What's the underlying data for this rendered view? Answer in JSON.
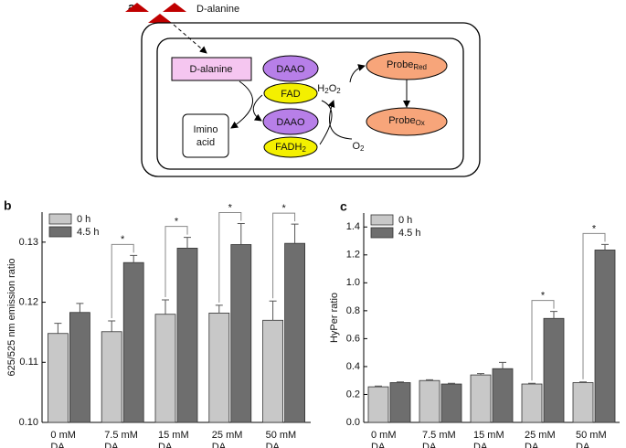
{
  "diagram": {
    "label": "a",
    "input": "D-alanine",
    "cell_substrate": "D-alanine",
    "enzyme_top": "DAAO",
    "cofactor_ox": "FAD",
    "enzyme_bottom": "DAAO",
    "cofactor_red": [
      [
        "FADH",
        "2"
      ]
    ],
    "product": [
      "Imino",
      "acid"
    ],
    "peroxide": [
      [
        "H",
        "2"
      ],
      [
        "O",
        "2"
      ]
    ],
    "oxygen": [
      [
        "O",
        "2"
      ]
    ],
    "probe_red": [
      [
        "Probe",
        "Red"
      ]
    ],
    "probe_ox": [
      [
        "Probe",
        "Ox"
      ]
    ]
  },
  "chart_data": [
    {
      "type": "bar",
      "panel": "b",
      "y_label": "625/525 nm emission ratio",
      "categories": [
        [
          "0 mM",
          "DA"
        ],
        [
          "7.5 mM",
          "DA"
        ],
        [
          "15 mM",
          "DA"
        ],
        [
          "25 mM",
          "DA"
        ],
        [
          "50 mM",
          "DA"
        ]
      ],
      "series": [
        {
          "name": "0 h",
          "color": "#c8c8c8",
          "values": [
            0.1148,
            0.1151,
            0.118,
            0.1182,
            0.117
          ],
          "errors": [
            0.0017,
            0.0018,
            0.0024,
            0.0013,
            0.0032
          ]
        },
        {
          "name": "4.5 h",
          "color": "#6e6e6e",
          "values": [
            0.1183,
            0.1266,
            0.129,
            0.1296,
            0.1298
          ],
          "errors": [
            0.0015,
            0.0012,
            0.0018,
            0.0035,
            0.0032
          ]
        }
      ],
      "significance": [
        null,
        "*",
        "*",
        "*",
        "*"
      ],
      "ylim": [
        0.1,
        0.135
      ],
      "yticks": [
        {
          "value": 0.1,
          "label": "0.10"
        },
        0.11,
        0.12,
        0.13
      ],
      "legend": "upper left",
      "grid": false
    },
    {
      "type": "bar",
      "panel": "c",
      "y_label": "HyPer ratio",
      "categories": [
        [
          "0 mM",
          "DA"
        ],
        [
          "7.5 mM",
          "DA"
        ],
        [
          "15 mM",
          "DA"
        ],
        [
          "25 mM",
          "DA"
        ],
        [
          "50 mM",
          "DA"
        ]
      ],
      "series": [
        {
          "name": "0 h",
          "color": "#c8c8c8",
          "values": [
            0.255,
            0.3,
            0.34,
            0.275,
            0.285
          ],
          "errors": [
            0.005,
            0.005,
            0.01,
            0.005,
            0.005
          ]
        },
        {
          "name": "4.5 h",
          "color": "#6e6e6e",
          "values": [
            0.285,
            0.275,
            0.385,
            0.745,
            1.235
          ],
          "errors": [
            0.005,
            0.005,
            0.045,
            0.05,
            0.04
          ]
        }
      ],
      "significance": [
        null,
        null,
        null,
        "*",
        "*"
      ],
      "ylim": [
        0,
        1.5
      ],
      "yticks": [
        {
          "value": 0,
          "label": "0.0"
        },
        0.2,
        0.4,
        0.6,
        0.8,
        {
          "value": 1,
          "label": "1.0"
        },
        1.2,
        1.4
      ],
      "legend": "upper left",
      "grid": false
    }
  ]
}
